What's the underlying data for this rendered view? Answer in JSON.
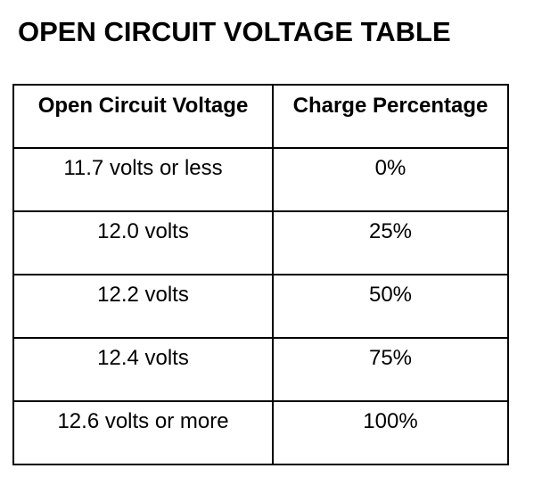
{
  "title": "OPEN CIRCUIT VOLTAGE TABLE",
  "table": {
    "headers": [
      "Open Circuit Voltage",
      "Charge Percentage"
    ],
    "rows": [
      [
        "11.7 volts or less",
        "0%"
      ],
      [
        "12.0 volts",
        "25%"
      ],
      [
        "12.2 volts",
        "50%"
      ],
      [
        "12.4 volts",
        "75%"
      ],
      [
        "12.6 volts or more",
        "100%"
      ]
    ]
  }
}
